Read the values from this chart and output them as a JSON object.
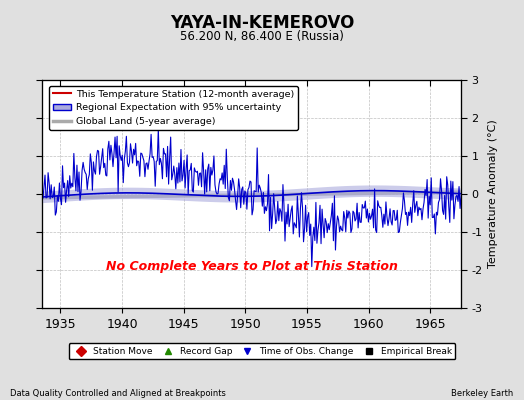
{
  "title": "YAYA-IN-KEMEROVO",
  "subtitle": "56.200 N, 86.400 E (Russia)",
  "ylabel": "Temperature Anomaly (°C)",
  "xlabel_note": "Data Quality Controlled and Aligned at Breakpoints",
  "source_note": "Berkeley Earth",
  "no_data_text": "No Complete Years to Plot at This Station",
  "xlim": [
    1933.5,
    1967.5
  ],
  "ylim": [
    -3,
    3
  ],
  "yticks": [
    -3,
    -2,
    -1,
    0,
    1,
    2,
    3
  ],
  "xticks": [
    1935,
    1940,
    1945,
    1950,
    1955,
    1960,
    1965
  ],
  "bg_color": "#e0e0e0",
  "plot_bg_color": "#ffffff",
  "regional_color": "#0000cc",
  "regional_fill_color": "#aaaadd",
  "station_color": "#cc0000",
  "global_color": "#aaaaaa",
  "seed": 42,
  "legend_entries": [
    {
      "label": "This Temperature Station (12-month average)",
      "color": "#cc0000",
      "lw": 1.5
    },
    {
      "label": "Regional Expectation with 95% uncertainty",
      "color": "#0000cc",
      "lw": 1.5
    },
    {
      "label": "Global Land (5-year average)",
      "color": "#aaaaaa",
      "lw": 2.5
    }
  ],
  "marker_legend": [
    {
      "label": "Station Move",
      "color": "#cc0000",
      "marker": "D"
    },
    {
      "label": "Record Gap",
      "color": "#228800",
      "marker": "^"
    },
    {
      "label": "Time of Obs. Change",
      "color": "#0000cc",
      "marker": "v"
    },
    {
      "label": "Empirical Break",
      "color": "#000000",
      "marker": "s"
    }
  ]
}
